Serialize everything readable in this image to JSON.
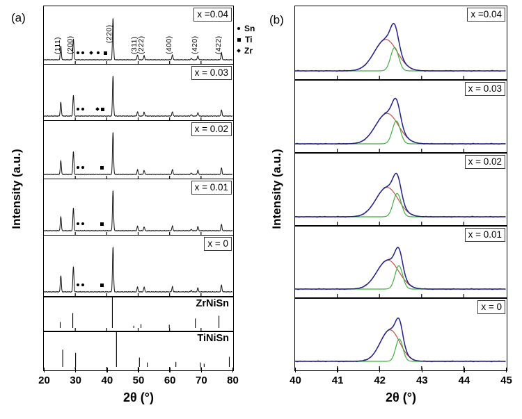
{
  "figure": {
    "panel_a_label": "(a)",
    "panel_b_label": "(b)",
    "y_axis_label": "Intensity (a.u.)",
    "x_axis_label": "2θ (°)"
  },
  "legend": {
    "items": [
      {
        "marker": "dot",
        "label": "Sn"
      },
      {
        "marker": "square",
        "label": "Ti"
      },
      {
        "marker": "diamond",
        "label": "Zr"
      }
    ]
  },
  "chart_data": [
    {
      "type": "line",
      "panel": "a",
      "description": "Powder XRD patterns (intensity vs 2-theta, 20-80 deg) for x = 0.04, 0.03, 0.02, 0.01, 0 stacked with ZrNiSn and TiNiSn reference stick patterns; impurity peaks marked Sn (dot), Ti (square), Zr (diamond)",
      "xlabel": "2θ (°)",
      "ylabel": "Intensity (a.u.)",
      "xlim": [
        20,
        80
      ],
      "x_ticks": [
        20,
        30,
        40,
        50,
        60,
        70,
        80
      ],
      "minor_ticks": [
        30,
        40,
        50,
        60,
        70
      ],
      "peak_labels": [
        {
          "text": "(111)",
          "x": 25.4,
          "tall": false
        },
        {
          "text": "(200)",
          "x": 29.4,
          "tall": false
        },
        {
          "text": "(220)",
          "x": 41.9,
          "tall": true
        },
        {
          "text": "(311)",
          "x": 49.8,
          "tall": false
        },
        {
          "text": "(222)",
          "x": 51.9,
          "tall": false
        },
        {
          "text": "(400)",
          "x": 60.9,
          "tall": false
        },
        {
          "text": "(420)",
          "x": 69.0,
          "tall": false
        },
        {
          "text": "(422)",
          "x": 76.5,
          "tall": false
        }
      ],
      "series": [
        {
          "label": "x =0.04",
          "kind": "pattern",
          "peaks": [
            [
              25.4,
              0.3
            ],
            [
              29.4,
              0.46
            ],
            [
              42.0,
              0.9
            ],
            [
              49.8,
              0.11
            ],
            [
              51.9,
              0.09
            ],
            [
              60.9,
              0.11
            ],
            [
              66.9,
              0.03
            ],
            [
              69.0,
              0.09
            ],
            [
              76.5,
              0.15
            ]
          ],
          "impurity_markers": [
            [
              30.7,
              "dot"
            ],
            [
              32.2,
              "dot"
            ],
            [
              34.9,
              "diamond"
            ],
            [
              37.0,
              "dot"
            ],
            [
              39.2,
              "square"
            ]
          ]
        },
        {
          "label": "x = 0.03",
          "kind": "pattern",
          "peaks": [
            [
              25.4,
              0.32
            ],
            [
              29.4,
              0.48
            ],
            [
              42.0,
              0.92
            ],
            [
              49.8,
              0.1
            ],
            [
              51.9,
              0.09
            ],
            [
              60.9,
              0.1
            ],
            [
              66.9,
              0.03
            ],
            [
              69.0,
              0.08
            ],
            [
              76.5,
              0.14
            ]
          ],
          "impurity_markers": [
            [
              30.7,
              "dot"
            ],
            [
              32.2,
              "dot"
            ],
            [
              36.8,
              "diamond"
            ],
            [
              38.3,
              "square"
            ]
          ]
        },
        {
          "label": "x = 0.02",
          "kind": "pattern",
          "peaks": [
            [
              25.4,
              0.3
            ],
            [
              29.4,
              0.5
            ],
            [
              42.0,
              0.93
            ],
            [
              49.8,
              0.1
            ],
            [
              51.9,
              0.09
            ],
            [
              60.9,
              0.11
            ],
            [
              66.9,
              0.03
            ],
            [
              69.0,
              0.09
            ],
            [
              76.5,
              0.14
            ]
          ],
          "impurity_markers": [
            [
              30.7,
              "dot"
            ],
            [
              32.2,
              "dot"
            ],
            [
              38.2,
              "square"
            ]
          ]
        },
        {
          "label": "x = 0.01",
          "kind": "pattern",
          "peaks": [
            [
              25.4,
              0.32
            ],
            [
              29.4,
              0.52
            ],
            [
              42.0,
              0.93
            ],
            [
              49.8,
              0.1
            ],
            [
              51.9,
              0.09
            ],
            [
              60.9,
              0.11
            ],
            [
              66.9,
              0.03
            ],
            [
              69.0,
              0.09
            ],
            [
              76.5,
              0.14
            ]
          ],
          "impurity_markers": [
            [
              30.7,
              "dot"
            ],
            [
              32.2,
              "dot"
            ],
            [
              38.2,
              "square"
            ]
          ]
        },
        {
          "label": "x = 0",
          "kind": "pattern",
          "peaks": [
            [
              25.4,
              0.33
            ],
            [
              29.4,
              0.52
            ],
            [
              42.0,
              0.93
            ],
            [
              49.8,
              0.1
            ],
            [
              51.9,
              0.1
            ],
            [
              60.9,
              0.11
            ],
            [
              66.9,
              0.03
            ],
            [
              69.0,
              0.08
            ],
            [
              76.5,
              0.14
            ]
          ],
          "impurity_markers": [
            [
              30.7,
              "dot"
            ],
            [
              32.2,
              "dot"
            ],
            [
              38.2,
              "square"
            ]
          ]
        },
        {
          "label": "ZrNiSn",
          "kind": "sticks",
          "sticks": [
            [
              25.2,
              0.22
            ],
            [
              29.2,
              0.55
            ],
            [
              41.8,
              1.2
            ],
            [
              48.6,
              0.08
            ],
            [
              50.9,
              0.14
            ],
            [
              59.9,
              0.12
            ],
            [
              68.2,
              0.35
            ],
            [
              75.7,
              0.45
            ]
          ]
        },
        {
          "label": "TiNiSn",
          "kind": "sticks",
          "sticks": [
            [
              26.0,
              0.55
            ],
            [
              30.1,
              0.45
            ],
            [
              43.1,
              1.2
            ],
            [
              50.4,
              0.3
            ],
            [
              52.9,
              0.14
            ],
            [
              62.0,
              0.16
            ],
            [
              69.8,
              0.14
            ],
            [
              71.0,
              0.1
            ],
            [
              79.0,
              0.32
            ]
          ]
        }
      ]
    },
    {
      "type": "line",
      "panel": "b",
      "description": "Enlarged (220) reflection (40-45 deg) with two-component peak fit: measured data (black), total fit envelope (blue), broad component (red), narrow component (green). Component format: [center_2theta_deg, relative_height, sigma_deg]",
      "xlabel": "2θ (°)",
      "ylabel": "Intensity (a.u.)",
      "xlim": [
        40,
        45
      ],
      "x_ticks": [
        40,
        41,
        42,
        43,
        44,
        45
      ],
      "minor_ticks": [
        41,
        42,
        43,
        44
      ],
      "colors": {
        "data": "#1a1a1a",
        "fit_envelope": "#22228e",
        "component_broad": "#c0504d",
        "component_narrow": "#3fae3f"
      },
      "series": [
        {
          "label": "x =0.04",
          "components": {
            "broad": [
              42.15,
              0.62,
              0.27
            ],
            "narrow": [
              42.36,
              0.46,
              0.095
            ]
          }
        },
        {
          "label": "x = 0.03",
          "components": {
            "broad": [
              42.18,
              0.6,
              0.27
            ],
            "narrow": [
              42.4,
              0.45,
              0.095
            ]
          }
        },
        {
          "label": "x = 0.02",
          "components": {
            "broad": [
              42.18,
              0.58,
              0.26
            ],
            "narrow": [
              42.42,
              0.46,
              0.095
            ]
          }
        },
        {
          "label": "x = 0.01",
          "components": {
            "broad": [
              42.2,
              0.57,
              0.26
            ],
            "narrow": [
              42.46,
              0.46,
              0.09
            ]
          }
        },
        {
          "label": "x = 0",
          "components": {
            "broad": [
              42.25,
              0.62,
              0.23
            ],
            "narrow": [
              42.47,
              0.44,
              0.085
            ]
          }
        }
      ]
    }
  ]
}
